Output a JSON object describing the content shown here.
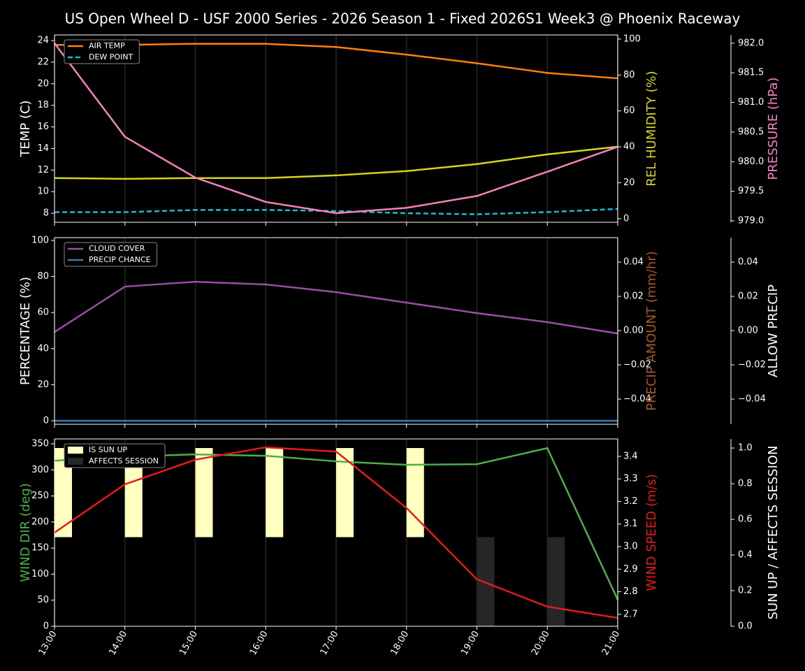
{
  "title": "US Open Wheel D - USF 2000 Series  - 2026 Season 1 - Fixed 2026S1 Week3 @ Phoenix Raceway",
  "chart_data": [
    {
      "type": "line",
      "ylabel": "TEMP (C)",
      "ylabel_color": "#ffffff",
      "ylim": [
        7.16,
        24.52
      ],
      "yticks": [
        8,
        10,
        12,
        14,
        16,
        18,
        20,
        22,
        24
      ],
      "y2label": "REL HUMIDITY (%)",
      "y2label_color": "#d4d41f",
      "y2lim": [
        -2,
        102.3
      ],
      "y2ticks": [
        0,
        20,
        40,
        60,
        80,
        100
      ],
      "y3label": "PRESSURE (hPa)",
      "y3label_color": "#f781bf",
      "y3lim": [
        978.976,
        982.14
      ],
      "y3ticks": [
        {
          "value": 979,
          "label": "979.0"
        },
        979.5,
        {
          "value": 980,
          "label": "980.0"
        },
        980.5,
        {
          "value": 981,
          "label": "981.0"
        },
        981.5,
        {
          "value": 982,
          "label": "982.0"
        }
      ],
      "grid": true,
      "legend": "upper-left",
      "series": [
        {
          "name": "AIR TEMP",
          "color": "#ff7f0e",
          "axis": "y",
          "dash": false,
          "in_legend": true,
          "values": [
            23.6,
            23.6,
            23.7,
            23.7,
            23.4,
            22.7,
            21.9,
            21.0,
            20.5
          ]
        },
        {
          "name": "DEW POINT",
          "color": "#17becf",
          "axis": "y",
          "dash": true,
          "in_legend": true,
          "values": [
            8.1,
            8.1,
            8.3,
            8.3,
            8.2,
            8.0,
            7.9,
            8.1,
            8.4
          ]
        },
        {
          "name": "REL HUMIDITY",
          "color": "#d4d41f",
          "axis": "y2",
          "dash": false,
          "in_legend": false,
          "values": [
            22.6,
            22.2,
            22.6,
            22.6,
            24.1,
            26.5,
            30.4,
            35.8,
            40.1
          ]
        },
        {
          "name": "PRESSURE",
          "color": "#f781bf",
          "axis": "y3",
          "dash": false,
          "in_legend": false,
          "values": [
            982.0,
            980.42,
            979.73,
            979.32,
            979.13,
            979.22,
            979.42,
            979.83,
            980.25
          ]
        }
      ]
    },
    {
      "type": "line",
      "ylabel": "PERCENTAGE (%)",
      "ylabel_color": "#ffffff",
      "ylim": [
        -1.94,
        101.55
      ],
      "yticks": [
        0,
        20,
        40,
        60,
        80,
        100
      ],
      "y2label": "PRECIP AMOUNT (mm/hr)",
      "y2label_color": "#a65628",
      "y2lim": [
        -0.0547,
        0.0543
      ],
      "y2ticks": [
        {
          "value": -0.04,
          "label": "−0.04"
        },
        {
          "value": -0.02,
          "label": "−0.02"
        },
        {
          "value": 0,
          "label": "0.00"
        },
        0.02,
        0.04
      ],
      "y3label": "ALLOW PRECIP",
      "y3label_color": "#ffffff",
      "y3lim": [
        -0.0547,
        0.0543
      ],
      "y3ticks": [
        {
          "value": -0.04,
          "label": "−0.04"
        },
        {
          "value": -0.02,
          "label": "−0.02"
        },
        {
          "value": 0,
          "label": "0.00"
        },
        0.02,
        0.04
      ],
      "grid": true,
      "legend": "upper-left",
      "series": [
        {
          "name": "CLOUD COVER",
          "color": "#984ea3",
          "axis": "y",
          "dash": false,
          "in_legend": true,
          "values": [
            49.2,
            74.4,
            77.1,
            75.6,
            71.3,
            65.5,
            59.7,
            54.7,
            48.4
          ]
        },
        {
          "name": "PRECIP CHANCE",
          "color": "#377eb8",
          "axis": "y",
          "dash": false,
          "in_legend": true,
          "values": [
            0,
            0,
            0,
            0,
            0,
            0,
            0,
            0,
            0
          ]
        }
      ]
    },
    {
      "type": "line",
      "categories": [
        "13:00",
        "14:00",
        "15:00",
        "16:00",
        "17:00",
        "18:00",
        "19:00",
        "20:00",
        "21:00"
      ],
      "ylabel": "WIND DIR (deg)",
      "ylabel_color": "#4daf4a",
      "ylim": [
        0,
        359.4
      ],
      "yticks": [
        0,
        50,
        100,
        150,
        200,
        250,
        300,
        350
      ],
      "y2label": "WIND SPEED (m/s)",
      "y2label_color": "#e41a1c",
      "y2lim": [
        2.647,
        3.477
      ],
      "y2ticks": [
        2.7,
        2.8,
        2.9,
        {
          "value": 3,
          "label": "3.0"
        },
        3.1,
        3.2,
        3.3,
        3.4
      ],
      "y3label": "SUN UP / AFFECTS SESSION",
      "y3label_color": "#ffffff",
      "y3lim": [
        0,
        1.051
      ],
      "y3ticks": [
        {
          "value": 0,
          "label": "0.0"
        },
        0.2,
        0.4,
        0.6,
        0.8,
        {
          "value": 1,
          "label": "1.0"
        }
      ],
      "grid": true,
      "legend": "upper-left",
      "series": [
        {
          "name": "IS SUN UP",
          "color": "#ffffc0",
          "axis": "y3",
          "kind": "bar",
          "base": 0.5,
          "in_legend": true,
          "values": [
            0.5,
            0.5,
            0.5,
            0.5,
            0.5,
            0.5,
            0,
            0,
            0
          ]
        },
        {
          "name": "AFFECTS SESSION",
          "color": "#262626",
          "axis": "y3",
          "kind": "bar",
          "base": 0,
          "in_legend": true,
          "values": [
            0,
            0,
            0,
            0,
            0,
            0,
            0.5,
            0.5,
            0
          ]
        },
        {
          "name": "WIND DIR",
          "color": "#4daf4a",
          "axis": "y",
          "dash": false,
          "in_legend": false,
          "values": [
            317.7,
            325.7,
            329.7,
            327.1,
            316.4,
            309.7,
            311.0,
            341.8,
            50.9
          ]
        },
        {
          "name": "WIND SPEED",
          "color": "#e41a1c",
          "axis": "y2",
          "dash": false,
          "in_legend": false,
          "values": [
            3.062,
            3.276,
            3.385,
            3.44,
            3.421,
            3.171,
            2.855,
            2.734,
            2.684
          ]
        }
      ]
    }
  ]
}
